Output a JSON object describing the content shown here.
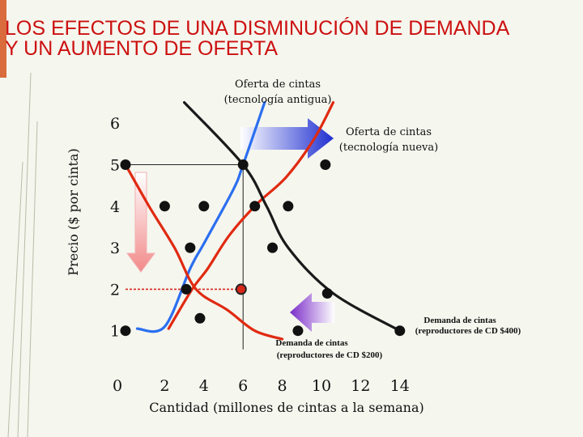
{
  "title": {
    "line1": "LOS EFECTOS DE UNA DISMINUCIÓN DE DEMANDA",
    "line2": "Y UN AUMENTO DE OFERTA"
  },
  "chart_data": {
    "type": "line",
    "xlabel": "Cantidad (millones de cintas a la semana)",
    "ylabel": "Precio ($ por cinta)",
    "x_ticks": [
      "0",
      "2",
      "4",
      "6",
      "8",
      "10",
      "12",
      "14"
    ],
    "y_ticks": [
      "1",
      "2",
      "3",
      "4",
      "5",
      "6"
    ],
    "xlim": [
      0,
      14.5
    ],
    "ylim": [
      0.2,
      6.5
    ],
    "highlight_x_tick": "6",
    "series": [
      {
        "name": "Oferta de cintas (tecnología antigua)",
        "color": "#2b6ff0",
        "values": [
          [
            0.6,
            1.05
          ],
          [
            2.0,
            1.1
          ],
          [
            3.3,
            2.5
          ],
          [
            4.0,
            3.1
          ],
          [
            5.5,
            4.4
          ],
          [
            6.0,
            5.0
          ],
          [
            7.1,
            6.5
          ]
        ]
      },
      {
        "name": "Oferta de cintas (tecnología nueva)",
        "color": "#e02a10",
        "values": [
          [
            2.2,
            1.05
          ],
          [
            3.4,
            2.0
          ],
          [
            4.2,
            2.5
          ],
          [
            5.3,
            3.3
          ],
          [
            6.7,
            4.05
          ],
          [
            8.2,
            4.7
          ],
          [
            9.6,
            5.6
          ],
          [
            10.6,
            6.5
          ]
        ]
      },
      {
        "name": "Demanda de cintas (reproductores de CD $400)",
        "color": "#1a1a1a",
        "values": [
          [
            3.0,
            6.5
          ],
          [
            6.0,
            5.0
          ],
          [
            7.2,
            4.0
          ],
          [
            8.3,
            3.0
          ],
          [
            10.6,
            1.9
          ],
          [
            14.0,
            1.0
          ]
        ]
      },
      {
        "name": "Demanda de cintas (reproductores de CD $200)",
        "color": "#e02a10",
        "values": [
          [
            0.0,
            5.0
          ],
          [
            1.2,
            4.0
          ],
          [
            2.5,
            3.0
          ],
          [
            3.6,
            2.0
          ],
          [
            5.2,
            1.5
          ],
          [
            6.6,
            1.0
          ],
          [
            8.0,
            0.8
          ]
        ]
      }
    ],
    "markers": [
      {
        "x": 0.0,
        "y": 5.0,
        "style": "dot"
      },
      {
        "x": 6.0,
        "y": 5.0,
        "style": "dot"
      },
      {
        "x": 10.2,
        "y": 5.0,
        "style": "dot"
      },
      {
        "x": 2.0,
        "y": 4.0,
        "style": "dot"
      },
      {
        "x": 4.0,
        "y": 4.0,
        "style": "dot"
      },
      {
        "x": 6.6,
        "y": 4.0,
        "style": "dot"
      },
      {
        "x": 8.3,
        "y": 4.0,
        "style": "dot"
      },
      {
        "x": 3.3,
        "y": 3.0,
        "style": "dot"
      },
      {
        "x": 7.5,
        "y": 3.0,
        "style": "dot"
      },
      {
        "x": 3.1,
        "y": 2.0,
        "style": "dot"
      },
      {
        "x": 5.9,
        "y": 2.0,
        "style": "ring"
      },
      {
        "x": 10.3,
        "y": 1.9,
        "style": "dot"
      },
      {
        "x": 0.0,
        "y": 1.0,
        "style": "dot"
      },
      {
        "x": 3.8,
        "y": 1.3,
        "style": "dot"
      },
      {
        "x": 8.8,
        "y": 1.0,
        "style": "dot"
      },
      {
        "x": 14.0,
        "y": 1.0,
        "style": "dot"
      }
    ],
    "annotations": {
      "supply_old_l1": "Oferta de cintas",
      "supply_old_l2": "(tecnología antigua)",
      "supply_new_l1": "Oferta de cintas",
      "supply_new_l2": "(tecnología nueva)",
      "demand_400_l1": "Demanda de cintas",
      "demand_400_l2": "(reproductores de CD $400)",
      "demand_200_l1": "Demanda de cintas",
      "demand_200_l2": "(reproductores de CD $200)"
    },
    "arrows": {
      "supply_shift_color": "#2233cc",
      "demand_shift_color": "#7a2cc8",
      "price_drop_color": "#f28a8a"
    },
    "equilibrium_old": {
      "x": 6.0,
      "y": 5.0
    },
    "equilibrium_new": {
      "x": 5.9,
      "y": 2.0
    }
  }
}
